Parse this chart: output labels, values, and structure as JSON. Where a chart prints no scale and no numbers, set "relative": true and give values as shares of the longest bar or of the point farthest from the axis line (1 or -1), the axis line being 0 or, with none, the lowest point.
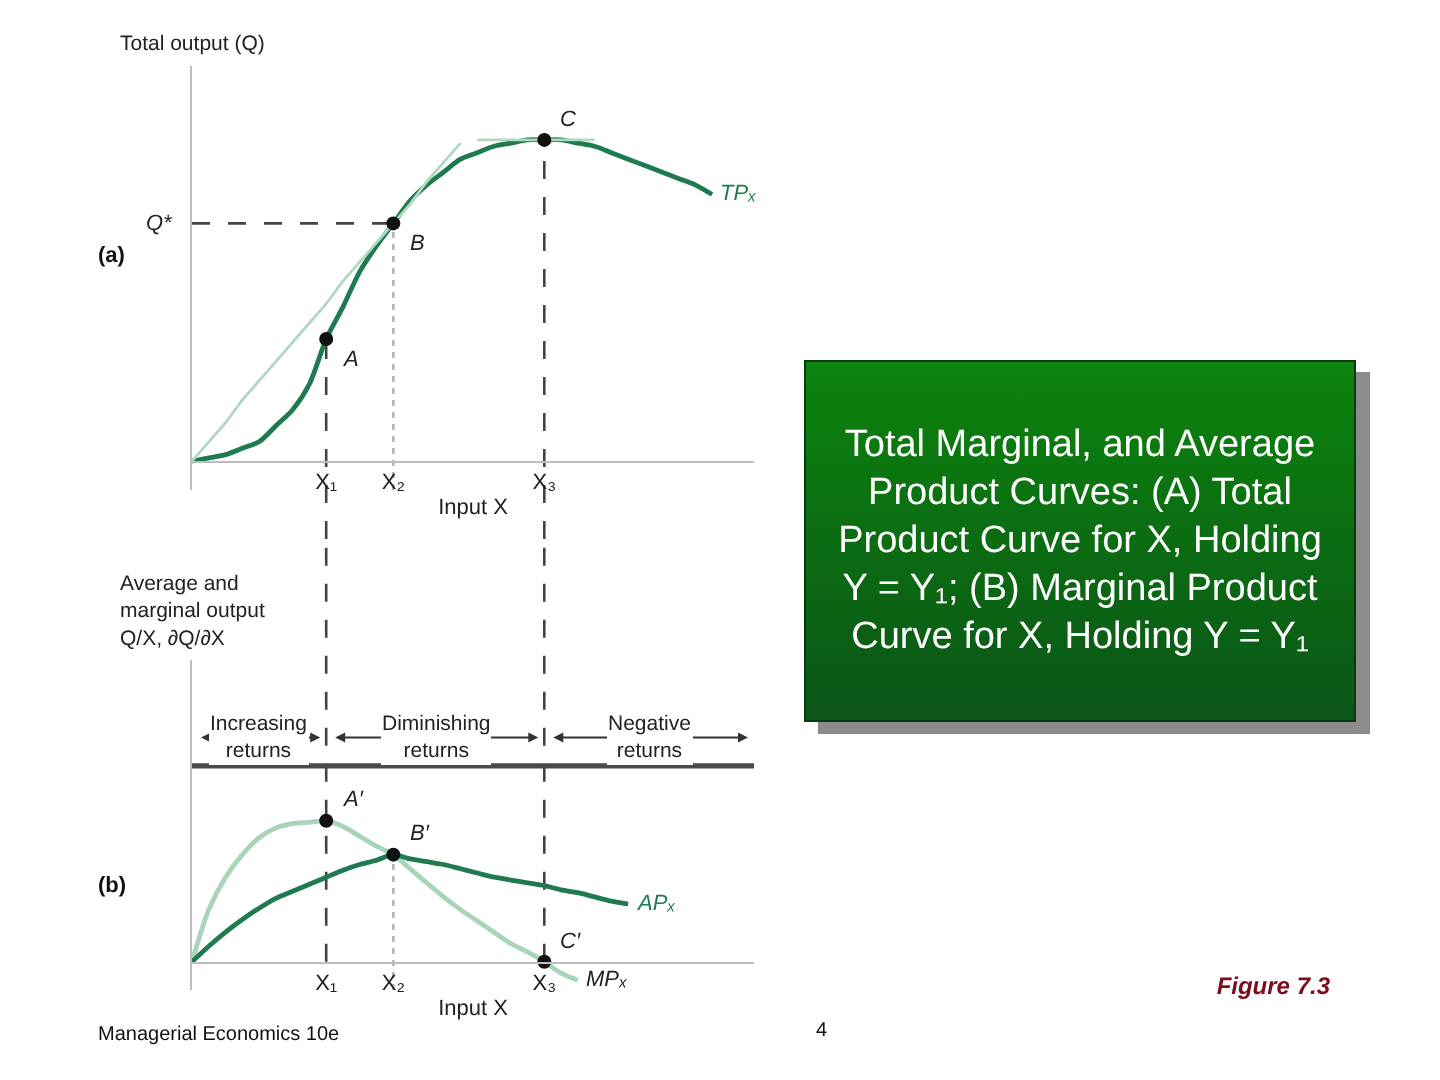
{
  "chart_data": [
    {
      "type": "line",
      "relative": true,
      "ylabel": "Total output (Q)",
      "xlabel": "Input X",
      "tick_labels": "x",
      "legend": false,
      "categories": [
        null,
        null,
        null,
        null,
        null,
        null,
        null,
        null,
        "X₁",
        null,
        null,
        null,
        "X₂",
        null,
        null,
        null,
        null,
        null,
        null,
        null,
        null,
        "X₃",
        null,
        null,
        null,
        null,
        null,
        null,
        null,
        null,
        null,
        null,
        null,
        null
      ],
      "series": [
        {
          "name": "TPₓ",
          "color": "#1f7a50",
          "values": [
            0,
            0.01,
            0.02,
            0.04,
            0.06,
            0.11,
            0.16,
            0.24,
            0.38,
            0.48,
            0.59,
            0.67,
            0.74,
            0.81,
            0.86,
            0.9,
            0.94,
            0.96,
            0.98,
            0.99,
            1,
            1,
            1,
            0.99,
            0.98,
            0.96,
            0.94,
            0.92,
            0.9,
            0.88,
            0.86,
            0.83,
            null,
            null
          ]
        },
        {
          "color": "#b0d9bf",
          "values": [
            0,
            0.06,
            0.12,
            0.19,
            0.25,
            0.31,
            0.37,
            0.43,
            0.49,
            0.56,
            0.62,
            0.68,
            0.74,
            0.8,
            0.87,
            0.93,
            0.99,
            null,
            null,
            null,
            null,
            null,
            null,
            null,
            null,
            null,
            null,
            null,
            null,
            null,
            null,
            null,
            null,
            null
          ]
        },
        {
          "color": "#b0d9bf",
          "values": [
            null,
            null,
            null,
            null,
            null,
            null,
            null,
            null,
            null,
            null,
            null,
            null,
            null,
            null,
            null,
            null,
            null,
            1,
            1,
            1,
            1,
            1,
            1,
            1,
            1,
            null,
            null,
            null,
            null,
            null,
            null,
            null,
            null,
            null
          ]
        },
        {
          "type": "scatter",
          "color": "#111111",
          "marker": "circle",
          "x": [
            "X₁",
            "X₂",
            "X₃"
          ],
          "values": [
            0.38,
            0.74,
            1
          ]
        }
      ],
      "ref_lines": [
        {
          "axis": "x",
          "value": "X₁",
          "line_style": "dashed",
          "color": "#444444"
        },
        {
          "axis": "x",
          "value": "X₂",
          "line_style": "dotted",
          "color": "#b4b4b4"
        },
        {
          "axis": "x",
          "value": "X₃",
          "line_style": "dashed",
          "color": "#444444"
        },
        {
          "axis": "y",
          "value": 0.74,
          "label": "Q*",
          "line_style": "dashed",
          "color": "#444444"
        }
      ],
      "annotations": [
        "(a)",
        {
          "text": "A",
          "x": "X₁",
          "y": 0.38
        },
        {
          "text": "B",
          "x": "X₂",
          "y": 0.74
        },
        {
          "text": "C",
          "x": "X₃",
          "y": 1
        }
      ]
    },
    {
      "type": "line",
      "relative": true,
      "ylabel": "Average and marginal output Q/X, ∂Q/∂X",
      "xlabel": "Input X",
      "tick_labels": "x",
      "legend": false,
      "categories": [
        null,
        null,
        null,
        null,
        null,
        null,
        null,
        null,
        "X₁",
        null,
        null,
        null,
        "X₂",
        null,
        null,
        null,
        null,
        null,
        null,
        null,
        null,
        "X₃",
        null,
        null,
        null,
        null,
        null,
        null,
        null,
        null,
        null,
        null,
        null,
        null
      ],
      "series": [
        {
          "name": "MPₓ",
          "color": "#a8d5b9",
          "values": [
            0,
            0.37,
            0.6,
            0.76,
            0.88,
            0.95,
            0.98,
            0.99,
            1,
            0.96,
            0.89,
            0.82,
            0.76,
            0.66,
            0.56,
            0.46,
            0.37,
            0.29,
            0.21,
            0.13,
            0.07,
            0,
            -0.08,
            -0.13,
            null,
            null,
            null,
            null,
            null,
            null,
            null,
            null,
            null,
            null
          ]
        },
        {
          "name": "APₓ",
          "color": "#1f7a50",
          "values": [
            0,
            0.11,
            0.21,
            0.3,
            0.38,
            0.45,
            0.5,
            0.55,
            0.6,
            0.65,
            0.69,
            0.72,
            0.76,
            0.73,
            0.71,
            0.69,
            0.66,
            0.63,
            0.6,
            0.58,
            0.56,
            0.54,
            0.51,
            0.49,
            0.46,
            0.43,
            0.41,
            null,
            null,
            null,
            null,
            null,
            null,
            null
          ]
        },
        {
          "type": "scatter",
          "color": "#111111",
          "marker": "circle",
          "x": [
            "X₁",
            "X₂",
            "X₃"
          ],
          "values": [
            1,
            0.76,
            0
          ]
        }
      ],
      "ref_lines": [
        {
          "axis": "x",
          "value": "X₁",
          "line_style": "dashed",
          "color": "#444444"
        },
        {
          "axis": "x",
          "value": "X₂",
          "line_style": "dotted",
          "color": "#b4b4b4"
        },
        {
          "axis": "x",
          "value": "X₃",
          "line_style": "dashed",
          "color": "#444444"
        },
        {
          "axis": "y",
          "value": 1.39,
          "line_style": "solid",
          "color": "#4a4a4a"
        }
      ],
      "annotations": [
        "(b)",
        "Increasing returns",
        "Diminishing returns",
        "Negative returns",
        "Managerial Economics 10e",
        {
          "text": "A′",
          "x": "X₁",
          "y": 1
        },
        {
          "text": "B′",
          "x": "X₂",
          "y": 0.76
        },
        {
          "text": "C′",
          "x": "X₃",
          "y": 0
        }
      ]
    },
    {
      "type": "other",
      "title": "Total Marginal, and Average Product Curves: (A) Total Product Curve for X, Holding Y = Y₁; (B) Marginal Product Curve for X, Holding Y = Y₁",
      "annotations": [
        "Figure 7.3",
        "4"
      ]
    }
  ]
}
